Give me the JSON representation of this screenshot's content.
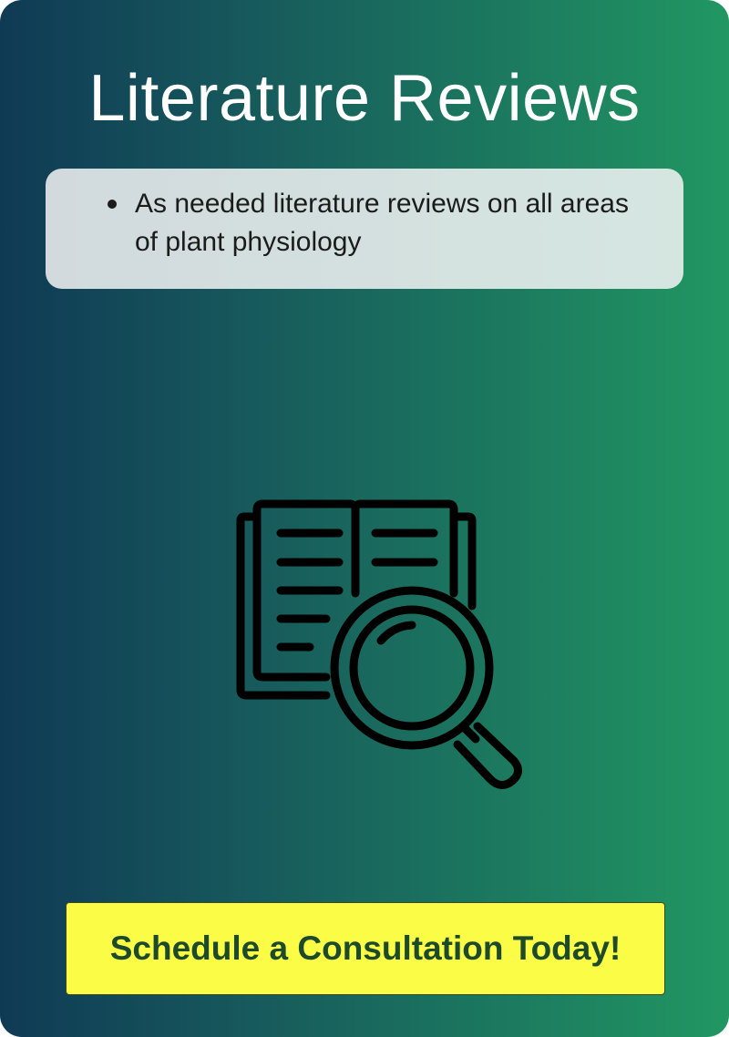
{
  "card": {
    "title": "Literature Reviews",
    "bullets": [
      "As needed literature reviews on all areas of plant physiology"
    ],
    "illustration_icon": "book-magnifier-icon",
    "cta_label": "Schedule a Consultation Today!"
  },
  "colors": {
    "gradient_start": "#0f3a55",
    "gradient_end": "#219762",
    "cta_background": "#fbfc45",
    "cta_text": "#1e4a2c",
    "title_text": "#ffffff"
  }
}
